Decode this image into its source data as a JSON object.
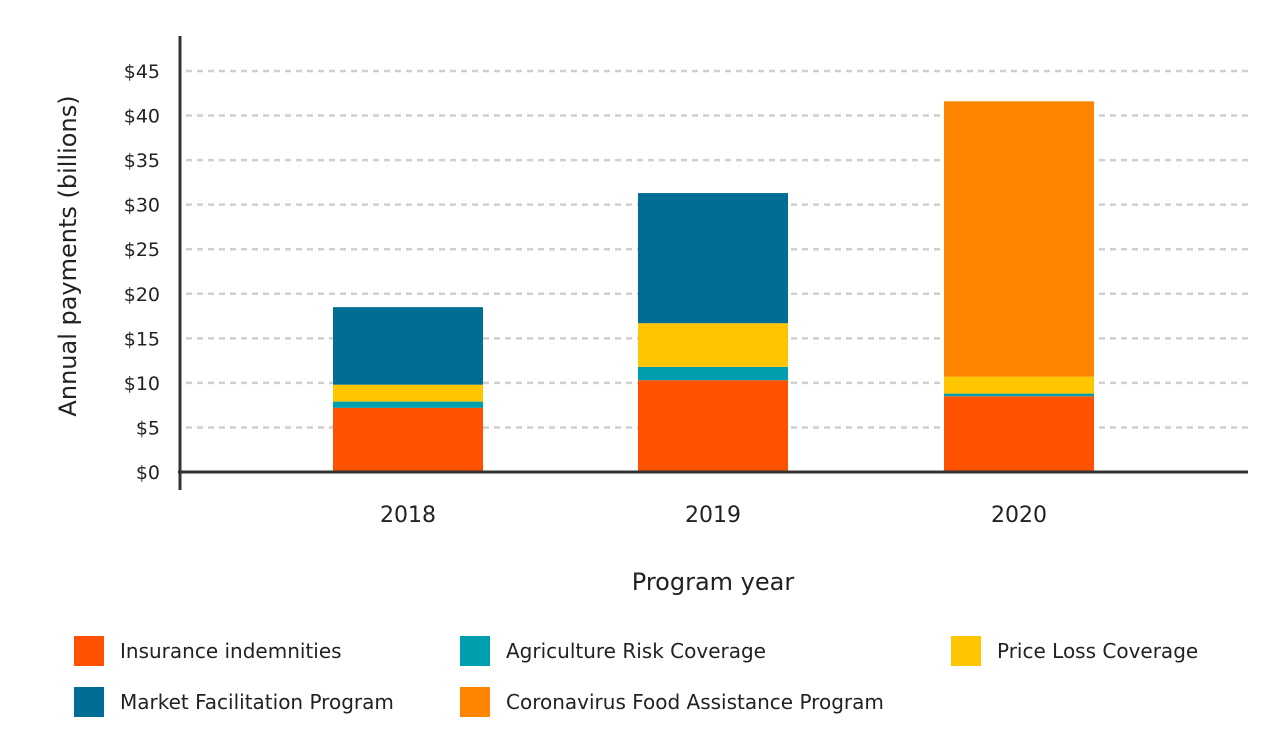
{
  "chart_data": {
    "type": "bar",
    "stacked": true,
    "xlabel": "Program year",
    "ylabel": "Annual payments (billions)",
    "categories": [
      "2018",
      "2019",
      "2020"
    ],
    "ylim": [
      0,
      45
    ],
    "yticks": [
      "$0",
      "$5",
      "$10",
      "$15",
      "$20",
      "$25",
      "$30",
      "$35",
      "$40",
      "$45"
    ],
    "grid": true,
    "legend_position": "bottom",
    "series": [
      {
        "name": "Insurance indemnities",
        "color": "#FF5200",
        "values": [
          7.2,
          10.3,
          8.5
        ]
      },
      {
        "name": "Agriculture Risk Coverage",
        "color": "#009FB0",
        "values": [
          0.7,
          1.5,
          0.3
        ]
      },
      {
        "name": "Price Loss Coverage",
        "color": "#FFC600",
        "values": [
          1.9,
          4.9,
          1.9
        ]
      },
      {
        "name": "Market Facilitation Program",
        "color": "#006D96",
        "values": [
          8.7,
          14.6,
          0
        ]
      },
      {
        "name": "Coronavirus Food Assistance Program",
        "color": "#FF8500",
        "values": [
          0,
          0,
          30.9
        ]
      }
    ]
  }
}
